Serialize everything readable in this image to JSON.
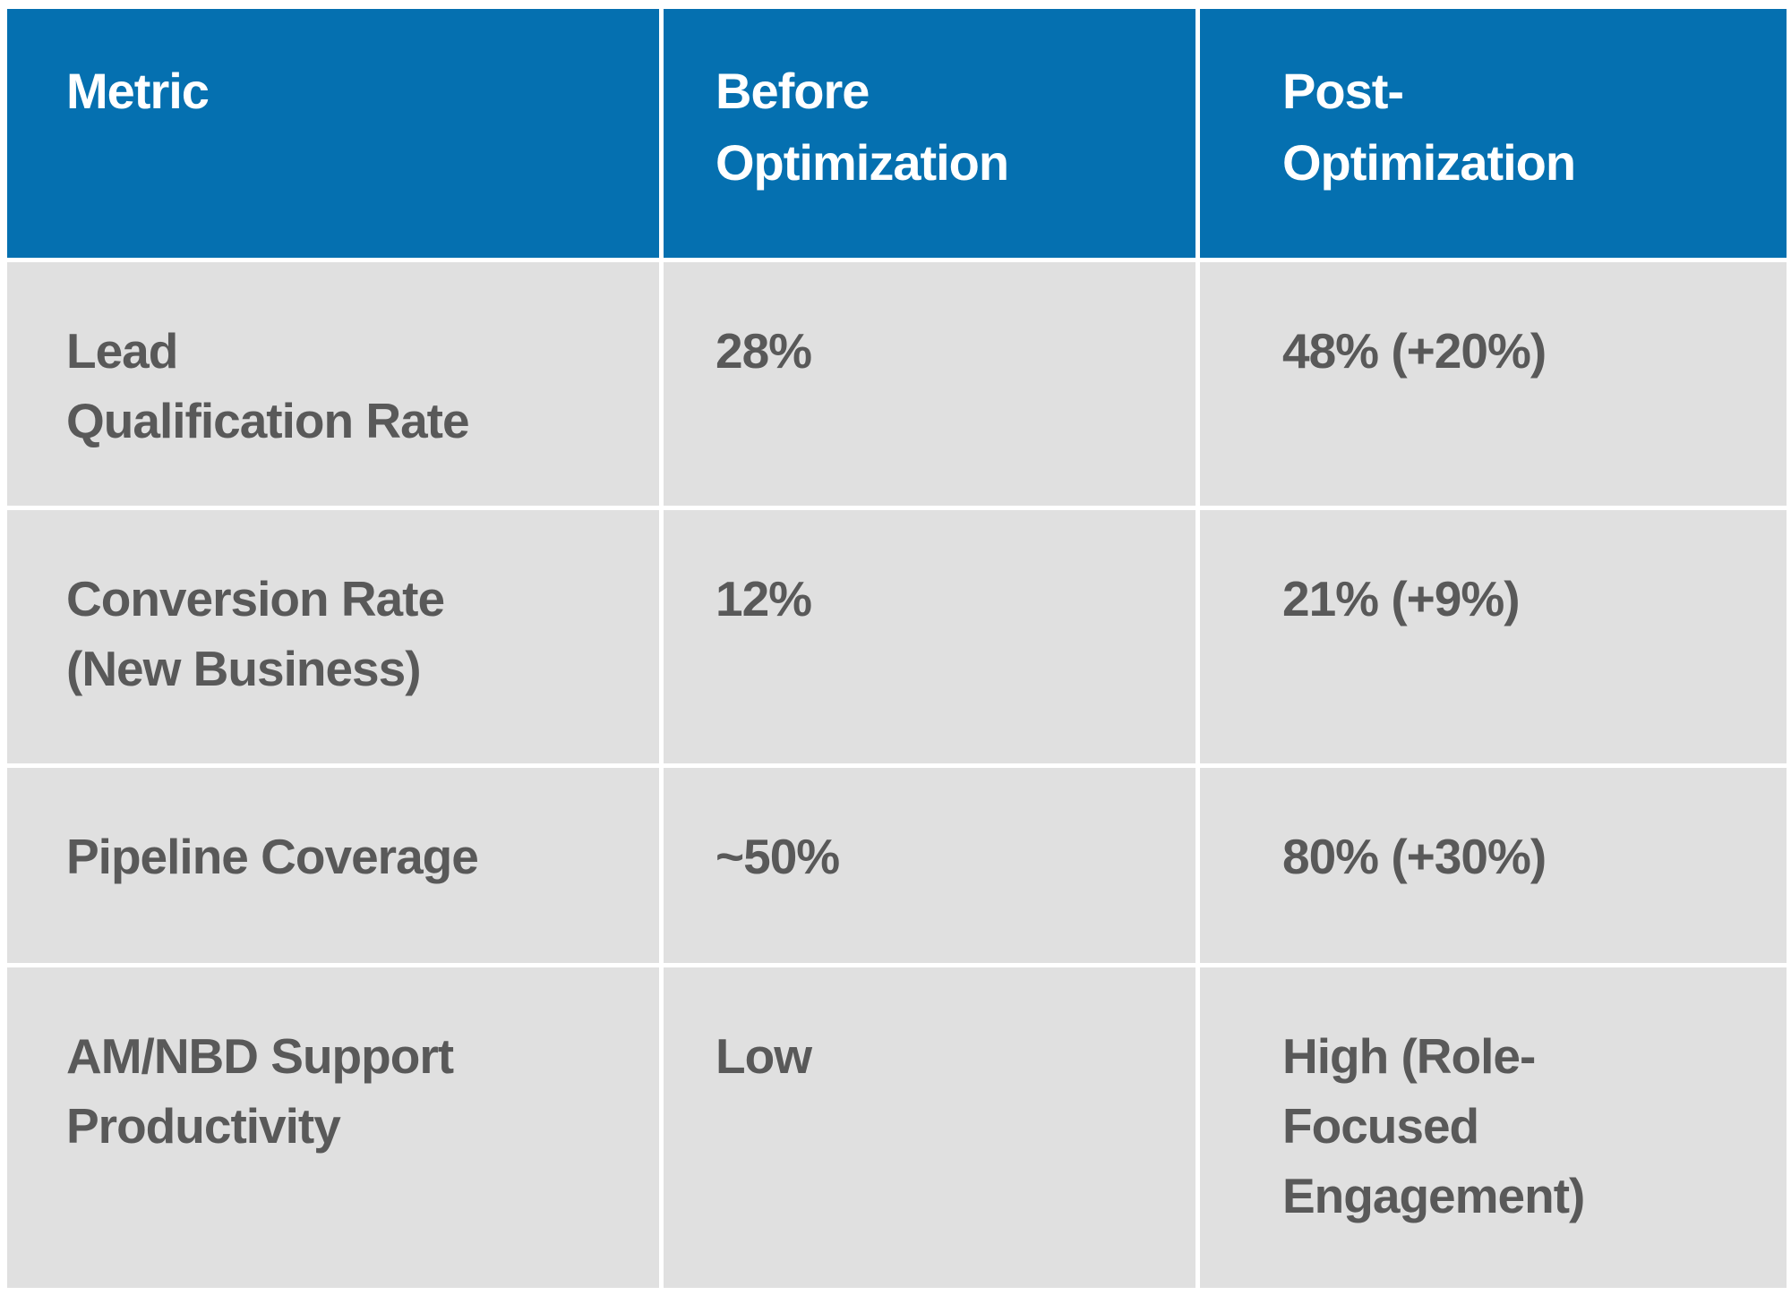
{
  "chart_data": {
    "type": "table",
    "columns": [
      "Metric",
      "Before Optimization",
      "Post-Optimization"
    ],
    "rows": [
      [
        "Lead Qualification Rate",
        "28%",
        "48% (+20%)"
      ],
      [
        "Conversion Rate (New Business)",
        "12%",
        "21% (+9%)"
      ],
      [
        "Pipeline Coverage",
        "~50%",
        "80% (+30%)"
      ],
      [
        "AM/NBD Support Productivity",
        "Low",
        "High (Role-Focused Engagement)"
      ]
    ],
    "layout": "header row blue, body rows gray, white gutters between all cells",
    "colors": {
      "header_bg": "#0570B0",
      "header_text": "#FFFFFF",
      "body_bg": "#E0E0E0",
      "body_text": "#595959",
      "gutter": "#FFFFFF"
    }
  },
  "table": {
    "header": {
      "metric": "Metric",
      "before": "Before\nOptimization",
      "post": "Post-\nOptimization"
    },
    "rows": [
      {
        "metric": "Lead\nQualification Rate",
        "before": "28%",
        "post": "48% (+20%)"
      },
      {
        "metric": "Conversion Rate\n(New Business)",
        "before": "12%",
        "post": "21% (+9%)"
      },
      {
        "metric": "Pipeline Coverage",
        "before": "~50%",
        "post": "80% (+30%)"
      },
      {
        "metric": "AM/NBD Support\nProductivity",
        "before": "Low",
        "post": "High (Role-\nFocused\nEngagement)"
      }
    ]
  }
}
